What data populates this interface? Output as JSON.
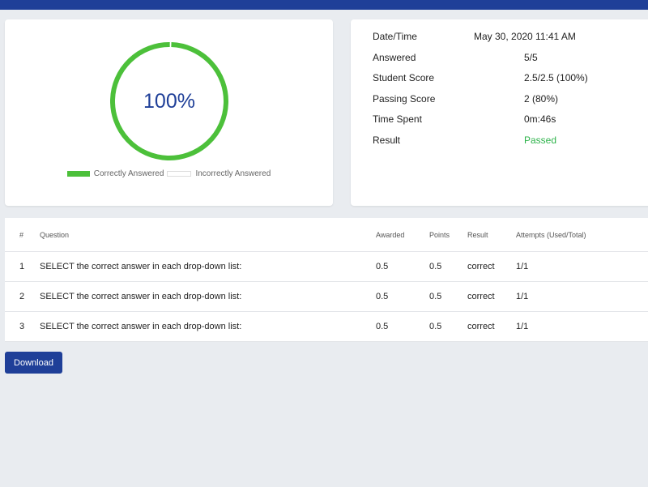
{
  "colors": {
    "brand": "#1f3f98",
    "correct": "#4cc03a",
    "passed": "#2db34a"
  },
  "chart_data": {
    "type": "pie",
    "categories": [
      "Correctly Answered",
      "Incorrectly Answered"
    ],
    "values": [
      100,
      0
    ],
    "center_label": "100%"
  },
  "summary": {
    "rows": [
      {
        "label": "Date/Time",
        "value": "May 30, 2020 11:41 AM"
      },
      {
        "label": "Answered",
        "value": "5/5"
      },
      {
        "label": "Student Score",
        "value": "2.5/2.5 (100%)"
      },
      {
        "label": "Passing Score",
        "value": "2 (80%)"
      },
      {
        "label": "Time Spent",
        "value": "0m:46s"
      },
      {
        "label": "Result",
        "value": "Passed"
      }
    ]
  },
  "table": {
    "headers": [
      "#",
      "Question",
      "Awarded",
      "Points",
      "Result",
      "Attempts (Used/Total)"
    ],
    "rows": [
      [
        "1",
        "SELECT the correct answer in each drop-down list:",
        "0.5",
        "0.5",
        "correct",
        "1/1"
      ],
      [
        "2",
        "SELECT the correct answer in each drop-down list:",
        "0.5",
        "0.5",
        "correct",
        "1/1"
      ],
      [
        "3",
        "SELECT the correct answer in each drop-down list:",
        "0.5",
        "0.5",
        "correct",
        "1/1"
      ]
    ]
  },
  "actions": {
    "download_label": "Download"
  }
}
